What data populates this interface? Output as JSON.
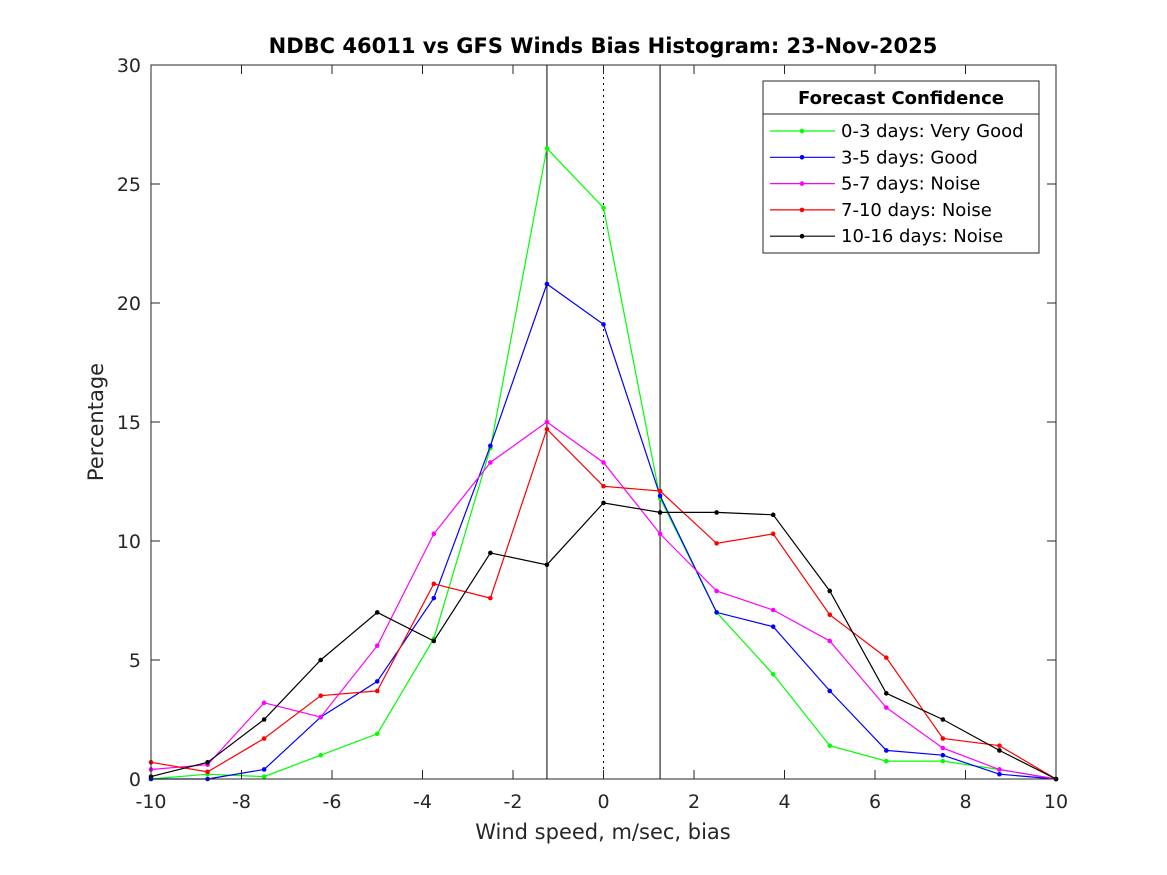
{
  "chart_data": {
    "type": "line",
    "title": "NDBC 46011 vs GFS Winds Bias Histogram: 23-Nov-2025",
    "xlabel": "Wind speed, m/sec, bias",
    "ylabel": "Percentage",
    "xlim": [
      -10,
      10
    ],
    "ylim": [
      0,
      30
    ],
    "xticks": [
      -10,
      -8,
      -6,
      -4,
      -2,
      0,
      2,
      4,
      6,
      8,
      10
    ],
    "yticks": [
      0,
      5,
      10,
      15,
      20,
      25,
      30
    ],
    "grid": false,
    "legend_position": "top-right",
    "legend_title": "Forecast Confidence",
    "reference_lines": [
      {
        "x": -1.25,
        "style": "solid"
      },
      {
        "x": 0,
        "style": "dotted"
      },
      {
        "x": 1.25,
        "style": "solid"
      }
    ],
    "x": [
      -10,
      -8.75,
      -7.5,
      -6.25,
      -5,
      -3.75,
      -2.5,
      -1.25,
      0,
      1.25,
      2.5,
      3.75,
      5,
      6.25,
      7.5,
      8.75,
      10
    ],
    "series": [
      {
        "name": "0-3 days: Very Good",
        "color": "#00ff00",
        "values": [
          0.0,
          0.2,
          0.1,
          1.0,
          1.9,
          5.9,
          13.9,
          26.5,
          24.0,
          11.8,
          7.0,
          4.4,
          1.4,
          0.75,
          0.75,
          0.4,
          0.0
        ]
      },
      {
        "name": "3-5 days: Good",
        "color": "#0000ff",
        "values": [
          0.0,
          0.0,
          0.4,
          2.6,
          4.1,
          7.6,
          14.0,
          20.8,
          19.1,
          11.9,
          7.0,
          6.4,
          3.7,
          1.2,
          1.0,
          0.2,
          0.0
        ]
      },
      {
        "name": "5-7 days: Noise",
        "color": "#ff00ff",
        "values": [
          0.4,
          0.6,
          3.2,
          2.6,
          5.6,
          10.3,
          13.3,
          15.0,
          13.3,
          10.3,
          7.9,
          7.1,
          5.8,
          3.0,
          1.3,
          0.4,
          0.0
        ]
      },
      {
        "name": "7-10 days: Noise",
        "color": "#ff0000",
        "values": [
          0.7,
          0.3,
          1.7,
          3.5,
          3.7,
          8.2,
          7.6,
          14.7,
          12.3,
          12.1,
          9.9,
          10.3,
          6.9,
          5.1,
          1.7,
          1.4,
          0.0
        ]
      },
      {
        "name": "10-16 days: Noise",
        "color": "#000000",
        "values": [
          0.1,
          0.7,
          2.5,
          5.0,
          7.0,
          5.8,
          9.5,
          9.0,
          11.6,
          11.2,
          11.2,
          11.1,
          7.9,
          3.6,
          2.5,
          1.2,
          0.0
        ]
      }
    ]
  }
}
